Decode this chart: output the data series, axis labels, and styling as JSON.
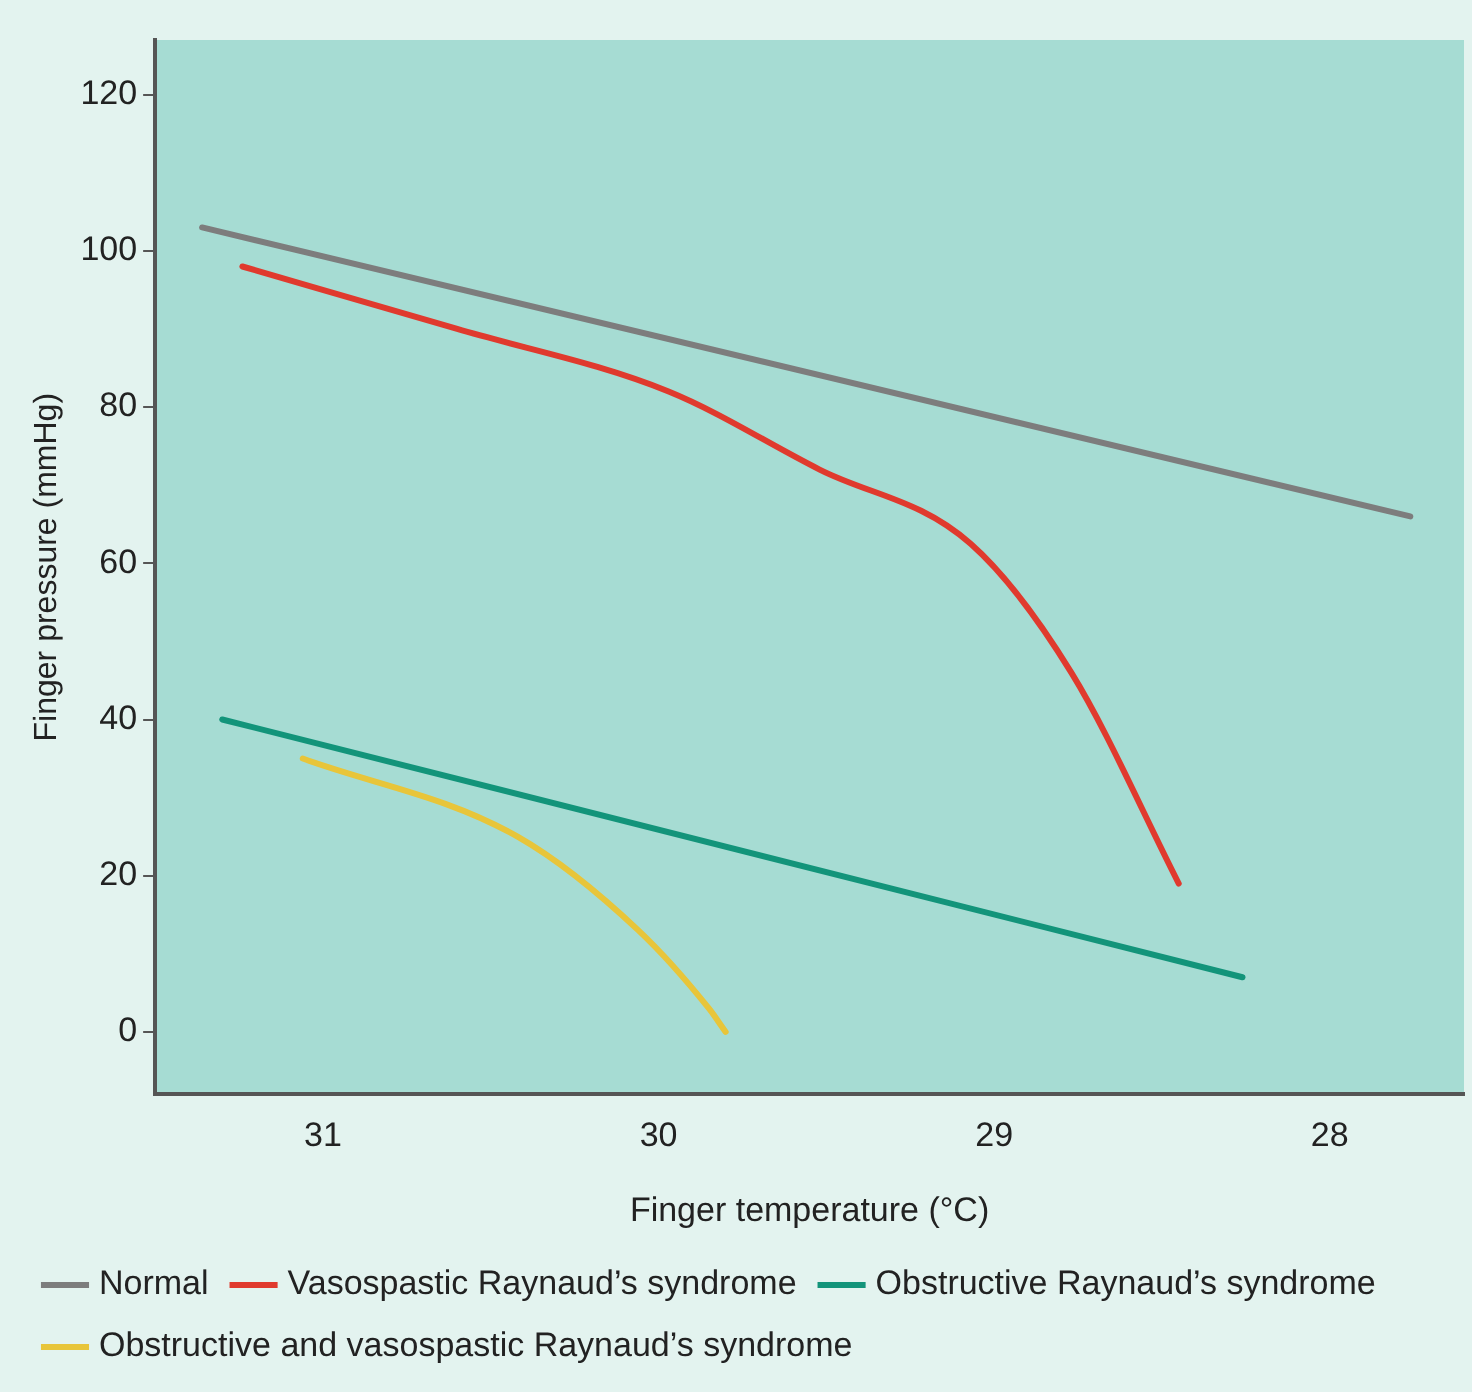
{
  "chart_data": {
    "type": "line",
    "xlabel": "Finger temperature (°C)",
    "ylabel": "Finger pressure (mmHg)",
    "xlim": [
      31.5,
      27.6
    ],
    "xticks": [
      31,
      30,
      29,
      28
    ],
    "ylim": [
      -8,
      127
    ],
    "yticks": [
      0,
      20,
      40,
      60,
      80,
      100,
      120
    ],
    "grid": false,
    "legend": "bottom",
    "marker": "none",
    "line_style": "solid",
    "series": [
      {
        "name": "Normal",
        "color": "#7d7d7d",
        "x": [
          31.36,
          27.76
        ],
        "values": [
          103,
          66
        ]
      },
      {
        "name": "Vasospastic Raynaud’s syndrome",
        "color": "#e03a2e",
        "x": [
          31.24,
          30.6,
          29.97,
          29.52,
          29.07,
          28.77,
          28.45
        ],
        "values": [
          98,
          90,
          82,
          72,
          62.5,
          46,
          19
        ]
      },
      {
        "name": "Obstructive Raynaud’s syndrome",
        "color": "#13947a",
        "x": [
          31.3,
          28.26
        ],
        "values": [
          40,
          7
        ]
      },
      {
        "name": "Obstructive and vasospastic Raynaud’s syndrome",
        "color": "#e8c53a",
        "x": [
          31.06,
          30.42,
          30.06,
          29.85,
          29.8
        ],
        "values": [
          35,
          25,
          13,
          3,
          0
        ]
      }
    ]
  }
}
